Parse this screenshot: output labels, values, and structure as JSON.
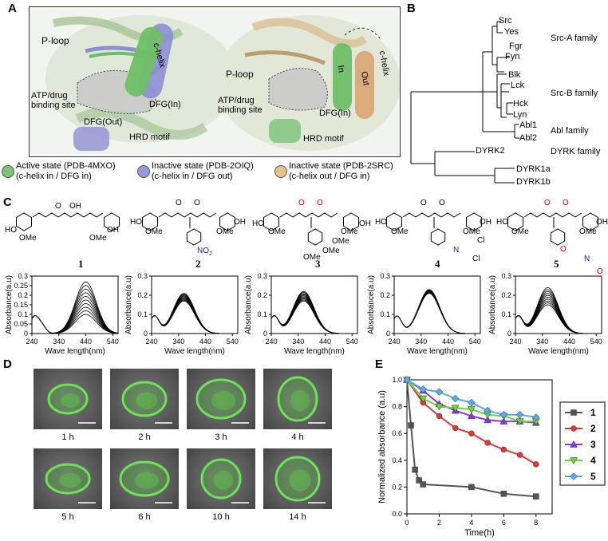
{
  "panels": {
    "A": "A",
    "B": "B",
    "C": "C",
    "D": "D",
    "E": "E"
  },
  "panelA": {
    "left": {
      "p_loop": "P-loop",
      "c_helix": "c-helix",
      "atp_site_1": "ATP/drug",
      "atp_site_2": "binding site",
      "dfg_in": "DFG(In)",
      "dfg_out": "DFG(Out)",
      "hrd": "HRD motif"
    },
    "right": {
      "p_loop": "P-loop",
      "in": "In",
      "out": "Out",
      "c_helix": "c-helix",
      "atp_site_1": "ATP/drug",
      "atp_site_2": "binding site",
      "dfg_in": "DFG(In)",
      "hrd": "HRD motif"
    },
    "colors": {
      "active": "#7cc47a",
      "inactive_out": "#9a9ad8",
      "inactive_c": "#e6c08f",
      "cylinder_blue": "#8e8ed4",
      "cylinder_green": "#6fbf67",
      "cylinder_tan": "#d9a878"
    },
    "legend": [
      {
        "line1": "Active state (PDB-4MXO)",
        "line2": "(c-helix in / DFG in)",
        "color": "#7cc47a"
      },
      {
        "line1": "Inactive state (PDB-2OIQ)",
        "line2": "(c-helix in / DFG out)",
        "color": "#9a9ad8"
      },
      {
        "line1": "Inactive state (PDB-2SRC)",
        "line2": "(c-helix out / DFG in)",
        "color": "#e6c08f"
      }
    ]
  },
  "panelB": {
    "leaves": [
      "Src",
      "Yes",
      "Fgr",
      "Fyn",
      "Blk",
      "Lck",
      "Hck",
      "Lyn",
      "Abl1",
      "Abl2",
      "DYRK2",
      "DYRK1a",
      "DYRK1b"
    ],
    "families": [
      "Src-A family",
      "Src-B family",
      "Abl family",
      "DYRK family"
    ]
  },
  "panelC": {
    "compounds": [
      "1",
      "2",
      "3",
      "4",
      "5"
    ],
    "struct_labels": {
      "ho": "HO",
      "oh": "OH",
      "ome": "OMe",
      "o": "O",
      "no2": "NO",
      "no2_sub": "2",
      "n": "N",
      "cl": "Cl"
    },
    "y_axis_label": "Absorbance(a.u)",
    "x_axis_label": "Wave length(nm)",
    "x_ticks": [
      "240",
      "340",
      "440",
      "540"
    ],
    "y_ticks_1": [
      "0",
      "0.05",
      "0.1",
      "0.15",
      "0.2",
      "0.25",
      "0.3"
    ],
    "y_ticks_2": [
      "0",
      "0.1",
      "0.2",
      "0.3"
    ],
    "y_ticks_3": [
      "0",
      "0.1",
      "0.2",
      "0.3"
    ],
    "y_ticks_4": [
      "0",
      "0.1",
      "0.2",
      "0.3"
    ],
    "y_ticks_5": [
      "0",
      "0.1",
      "0.2",
      "0.3"
    ]
  },
  "panelD": {
    "captions": [
      "1 h",
      "2 h",
      "3 h",
      "4 h",
      "5 h",
      "6 h",
      "10 h",
      "14 h"
    ]
  },
  "chart_data": {
    "type": "line",
    "ylabel": "Normalized absorbance (a.u)",
    "xlabel": "Time(h)",
    "xlim": [
      0,
      9
    ],
    "ylim": [
      0.0,
      1.0
    ],
    "x_ticks": [
      "0",
      "2",
      "4",
      "6",
      "8"
    ],
    "y_ticks": [
      "0.0",
      "0.2",
      "0.4",
      "0.6",
      "0.8",
      "1.0"
    ],
    "legend_position": "right",
    "series": [
      {
        "name": "1",
        "color": "#555555",
        "marker": "square",
        "x": [
          0,
          0.25,
          0.5,
          0.75,
          1,
          4,
          6,
          8
        ],
        "y": [
          1.0,
          0.66,
          0.33,
          0.25,
          0.22,
          0.2,
          0.15,
          0.13
        ]
      },
      {
        "name": "2",
        "color": "#d63a3a",
        "marker": "circle",
        "x": [
          0,
          1,
          2,
          3,
          4,
          5,
          6,
          7,
          8
        ],
        "y": [
          1.0,
          0.83,
          0.73,
          0.64,
          0.6,
          0.53,
          0.48,
          0.44,
          0.37
        ]
      },
      {
        "name": "3",
        "color": "#8a3ad6",
        "marker": "triangle-up",
        "x": [
          0,
          1,
          2,
          3,
          4,
          5,
          6,
          7,
          8
        ],
        "y": [
          1.0,
          0.92,
          0.82,
          0.77,
          0.73,
          0.7,
          0.69,
          0.69,
          0.68
        ]
      },
      {
        "name": "4",
        "color": "#6ad63a",
        "marker": "triangle-down",
        "x": [
          0,
          1,
          2,
          3,
          4,
          5,
          6,
          7,
          8
        ],
        "y": [
          1.0,
          0.86,
          0.8,
          0.79,
          0.78,
          0.74,
          0.73,
          0.69,
          0.69
        ]
      },
      {
        "name": "5",
        "color": "#5aa8f0",
        "marker": "diamond",
        "x": [
          0,
          1,
          2,
          3,
          4,
          5,
          6,
          7,
          8
        ],
        "y": [
          1.0,
          0.93,
          0.91,
          0.86,
          0.83,
          0.77,
          0.74,
          0.74,
          0.72
        ]
      }
    ]
  }
}
